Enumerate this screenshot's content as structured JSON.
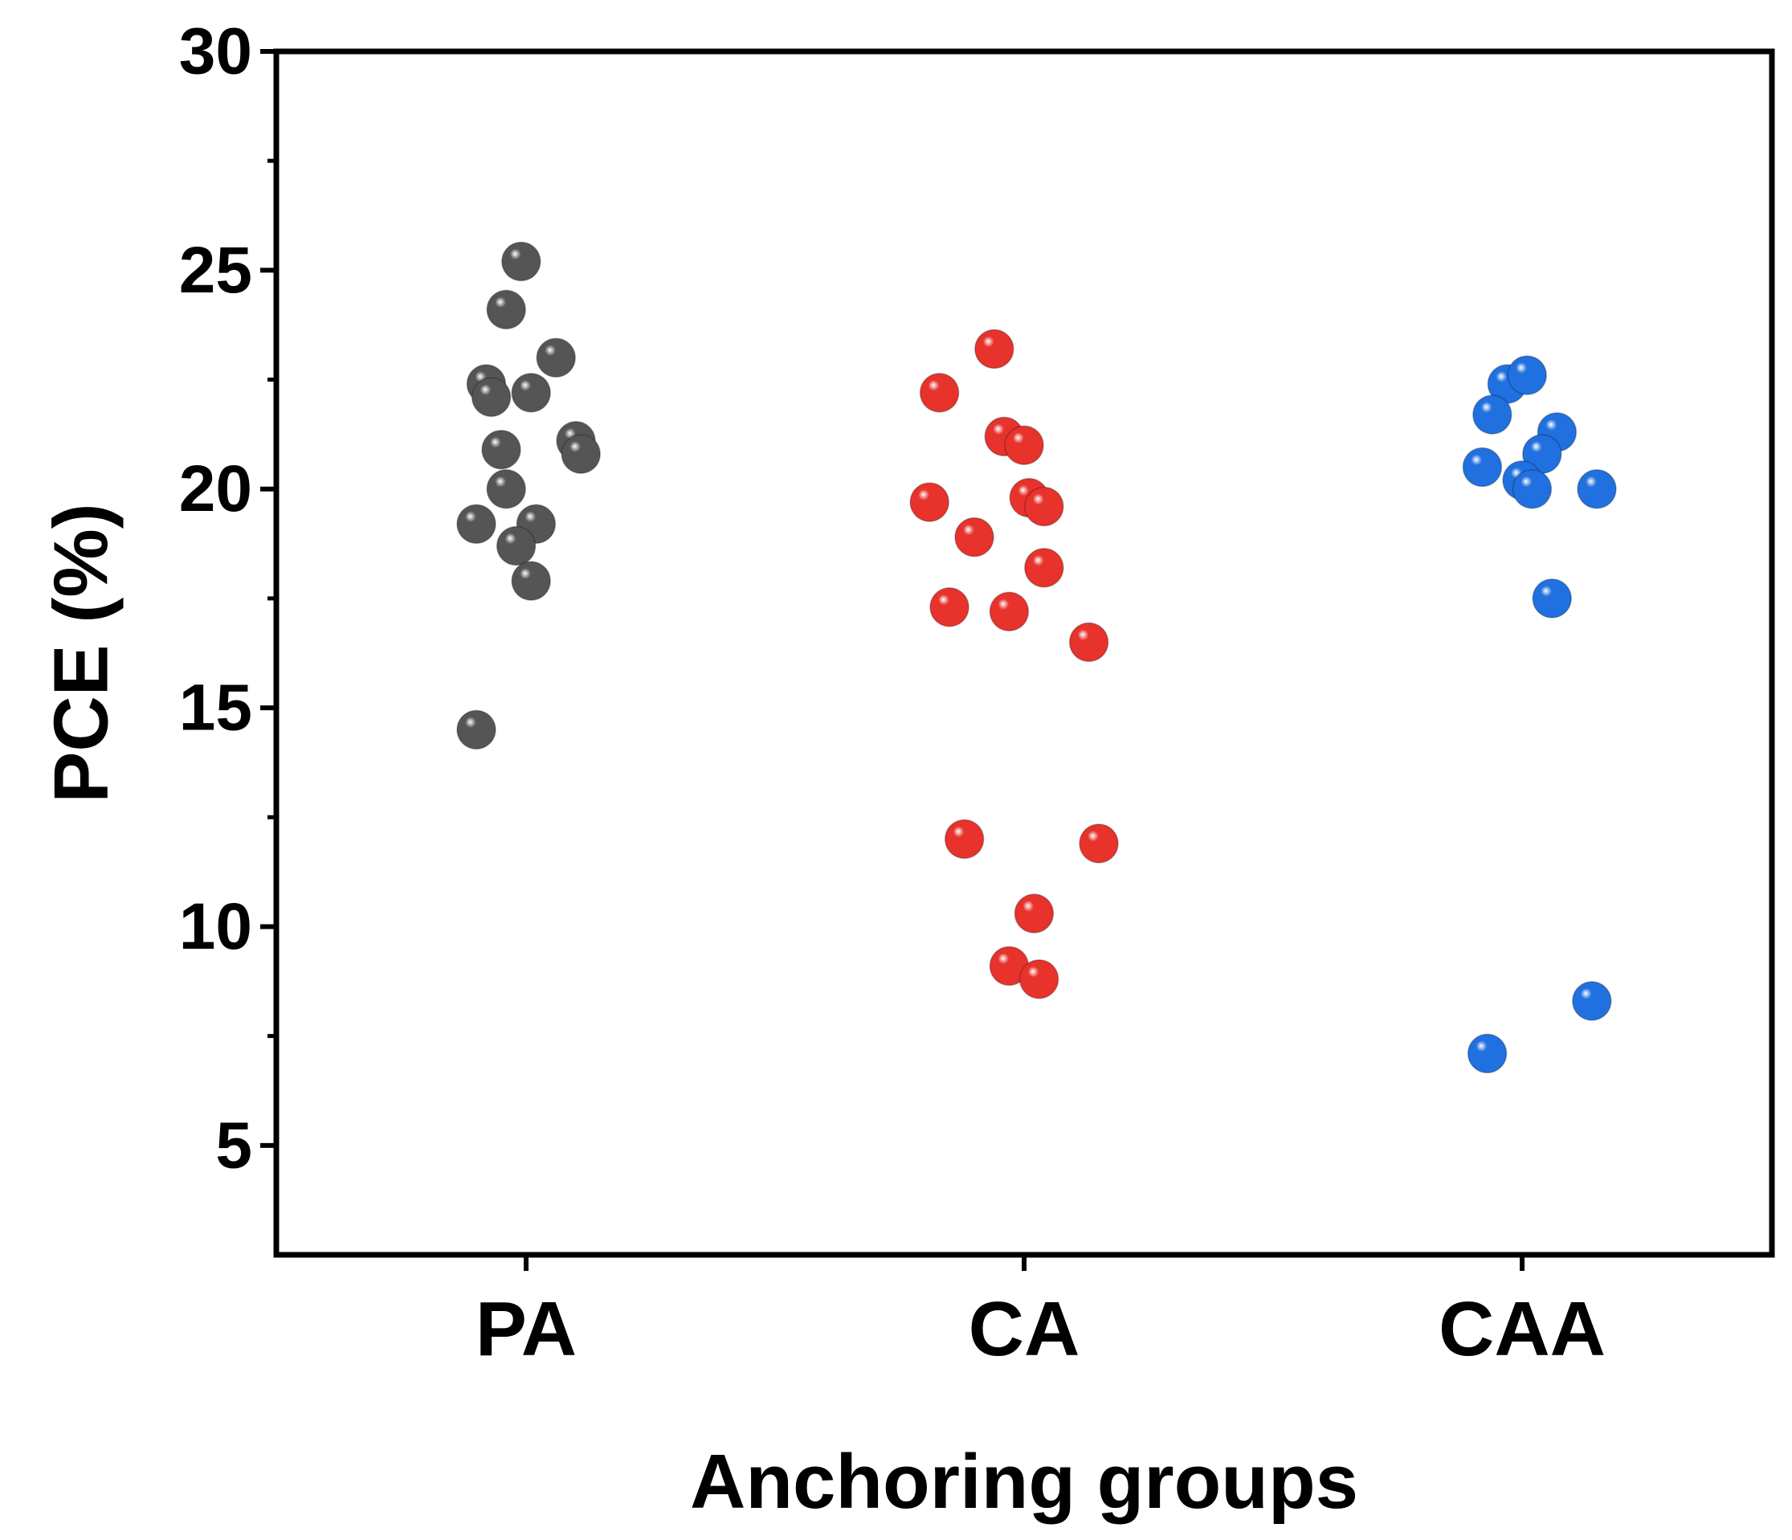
{
  "chart_data": {
    "type": "scatter",
    "xlabel": "Anchoring groups",
    "ylabel": "PCE (%)",
    "ylim": [
      2.5,
      30
    ],
    "yticks": [
      5,
      10,
      15,
      20,
      25,
      30
    ],
    "yminor_ticks": [
      7.5,
      12.5,
      17.5,
      22.5,
      27.5
    ],
    "categories": [
      "PA",
      "CA",
      "CAA"
    ],
    "series": [
      {
        "name": "PA",
        "color": "#555555",
        "points": [
          {
            "x": -0.01,
            "y": 25.2
          },
          {
            "x": -0.04,
            "y": 24.1
          },
          {
            "x": 0.06,
            "y": 23.0
          },
          {
            "x": -0.08,
            "y": 22.4
          },
          {
            "x": -0.07,
            "y": 22.1
          },
          {
            "x": 0.01,
            "y": 22.2
          },
          {
            "x": 0.1,
            "y": 21.1
          },
          {
            "x": 0.11,
            "y": 20.8
          },
          {
            "x": -0.05,
            "y": 20.9
          },
          {
            "x": -0.04,
            "y": 20.0
          },
          {
            "x": -0.1,
            "y": 19.2
          },
          {
            "x": 0.02,
            "y": 19.2
          },
          {
            "x": -0.02,
            "y": 18.7
          },
          {
            "x": 0.01,
            "y": 17.9
          },
          {
            "x": -0.1,
            "y": 14.5
          }
        ]
      },
      {
        "name": "CA",
        "color": "#e8322c",
        "points": [
          {
            "x": -0.06,
            "y": 23.2
          },
          {
            "x": -0.17,
            "y": 22.2
          },
          {
            "x": -0.04,
            "y": 21.2
          },
          {
            "x": 0.0,
            "y": 21.0
          },
          {
            "x": 0.01,
            "y": 19.8
          },
          {
            "x": 0.04,
            "y": 19.6
          },
          {
            "x": -0.19,
            "y": 19.7
          },
          {
            "x": -0.1,
            "y": 18.9
          },
          {
            "x": 0.04,
            "y": 18.2
          },
          {
            "x": -0.15,
            "y": 17.3
          },
          {
            "x": -0.03,
            "y": 17.2
          },
          {
            "x": 0.13,
            "y": 16.5
          },
          {
            "x": -0.12,
            "y": 12.0
          },
          {
            "x": 0.15,
            "y": 11.9
          },
          {
            "x": 0.02,
            "y": 10.3
          },
          {
            "x": -0.03,
            "y": 9.1
          },
          {
            "x": 0.03,
            "y": 8.8
          }
        ]
      },
      {
        "name": "CAA",
        "color": "#2070e0",
        "points": [
          {
            "x": -0.03,
            "y": 22.4
          },
          {
            "x": 0.01,
            "y": 22.6
          },
          {
            "x": -0.06,
            "y": 21.7
          },
          {
            "x": 0.07,
            "y": 21.3
          },
          {
            "x": 0.04,
            "y": 20.8
          },
          {
            "x": -0.08,
            "y": 20.5
          },
          {
            "x": 0.0,
            "y": 20.2
          },
          {
            "x": 0.02,
            "y": 20.0
          },
          {
            "x": 0.15,
            "y": 20.0
          },
          {
            "x": 0.06,
            "y": 17.5
          },
          {
            "x": 0.14,
            "y": 8.3
          },
          {
            "x": -0.07,
            "y": 7.1
          }
        ]
      }
    ]
  }
}
